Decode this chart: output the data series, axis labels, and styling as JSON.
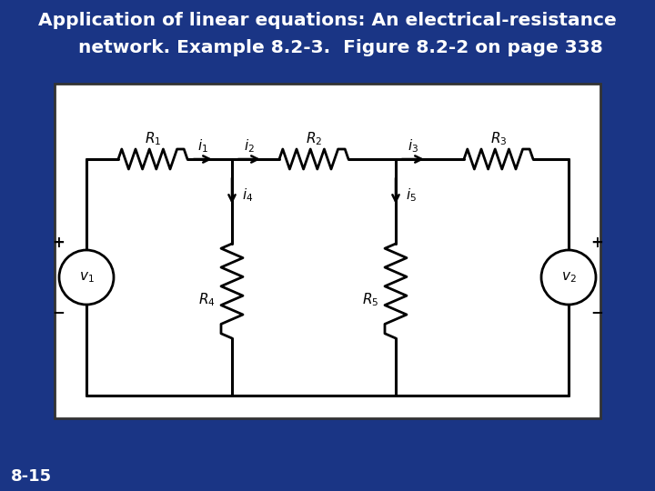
{
  "title_line1": "Application of linear equations: An electrical-resistance",
  "title_line2": "    network. Example 8.2-3.  Figure 8.2-2 on page 338",
  "footer": "8-15",
  "bg_color": "#1a3585",
  "circuit_bg": "#ffffff",
  "line_color": "#000000",
  "text_color": "#ffffff",
  "title_fontsize": 14.5,
  "footer_fontsize": 13,
  "circuit_lw": 2.2
}
